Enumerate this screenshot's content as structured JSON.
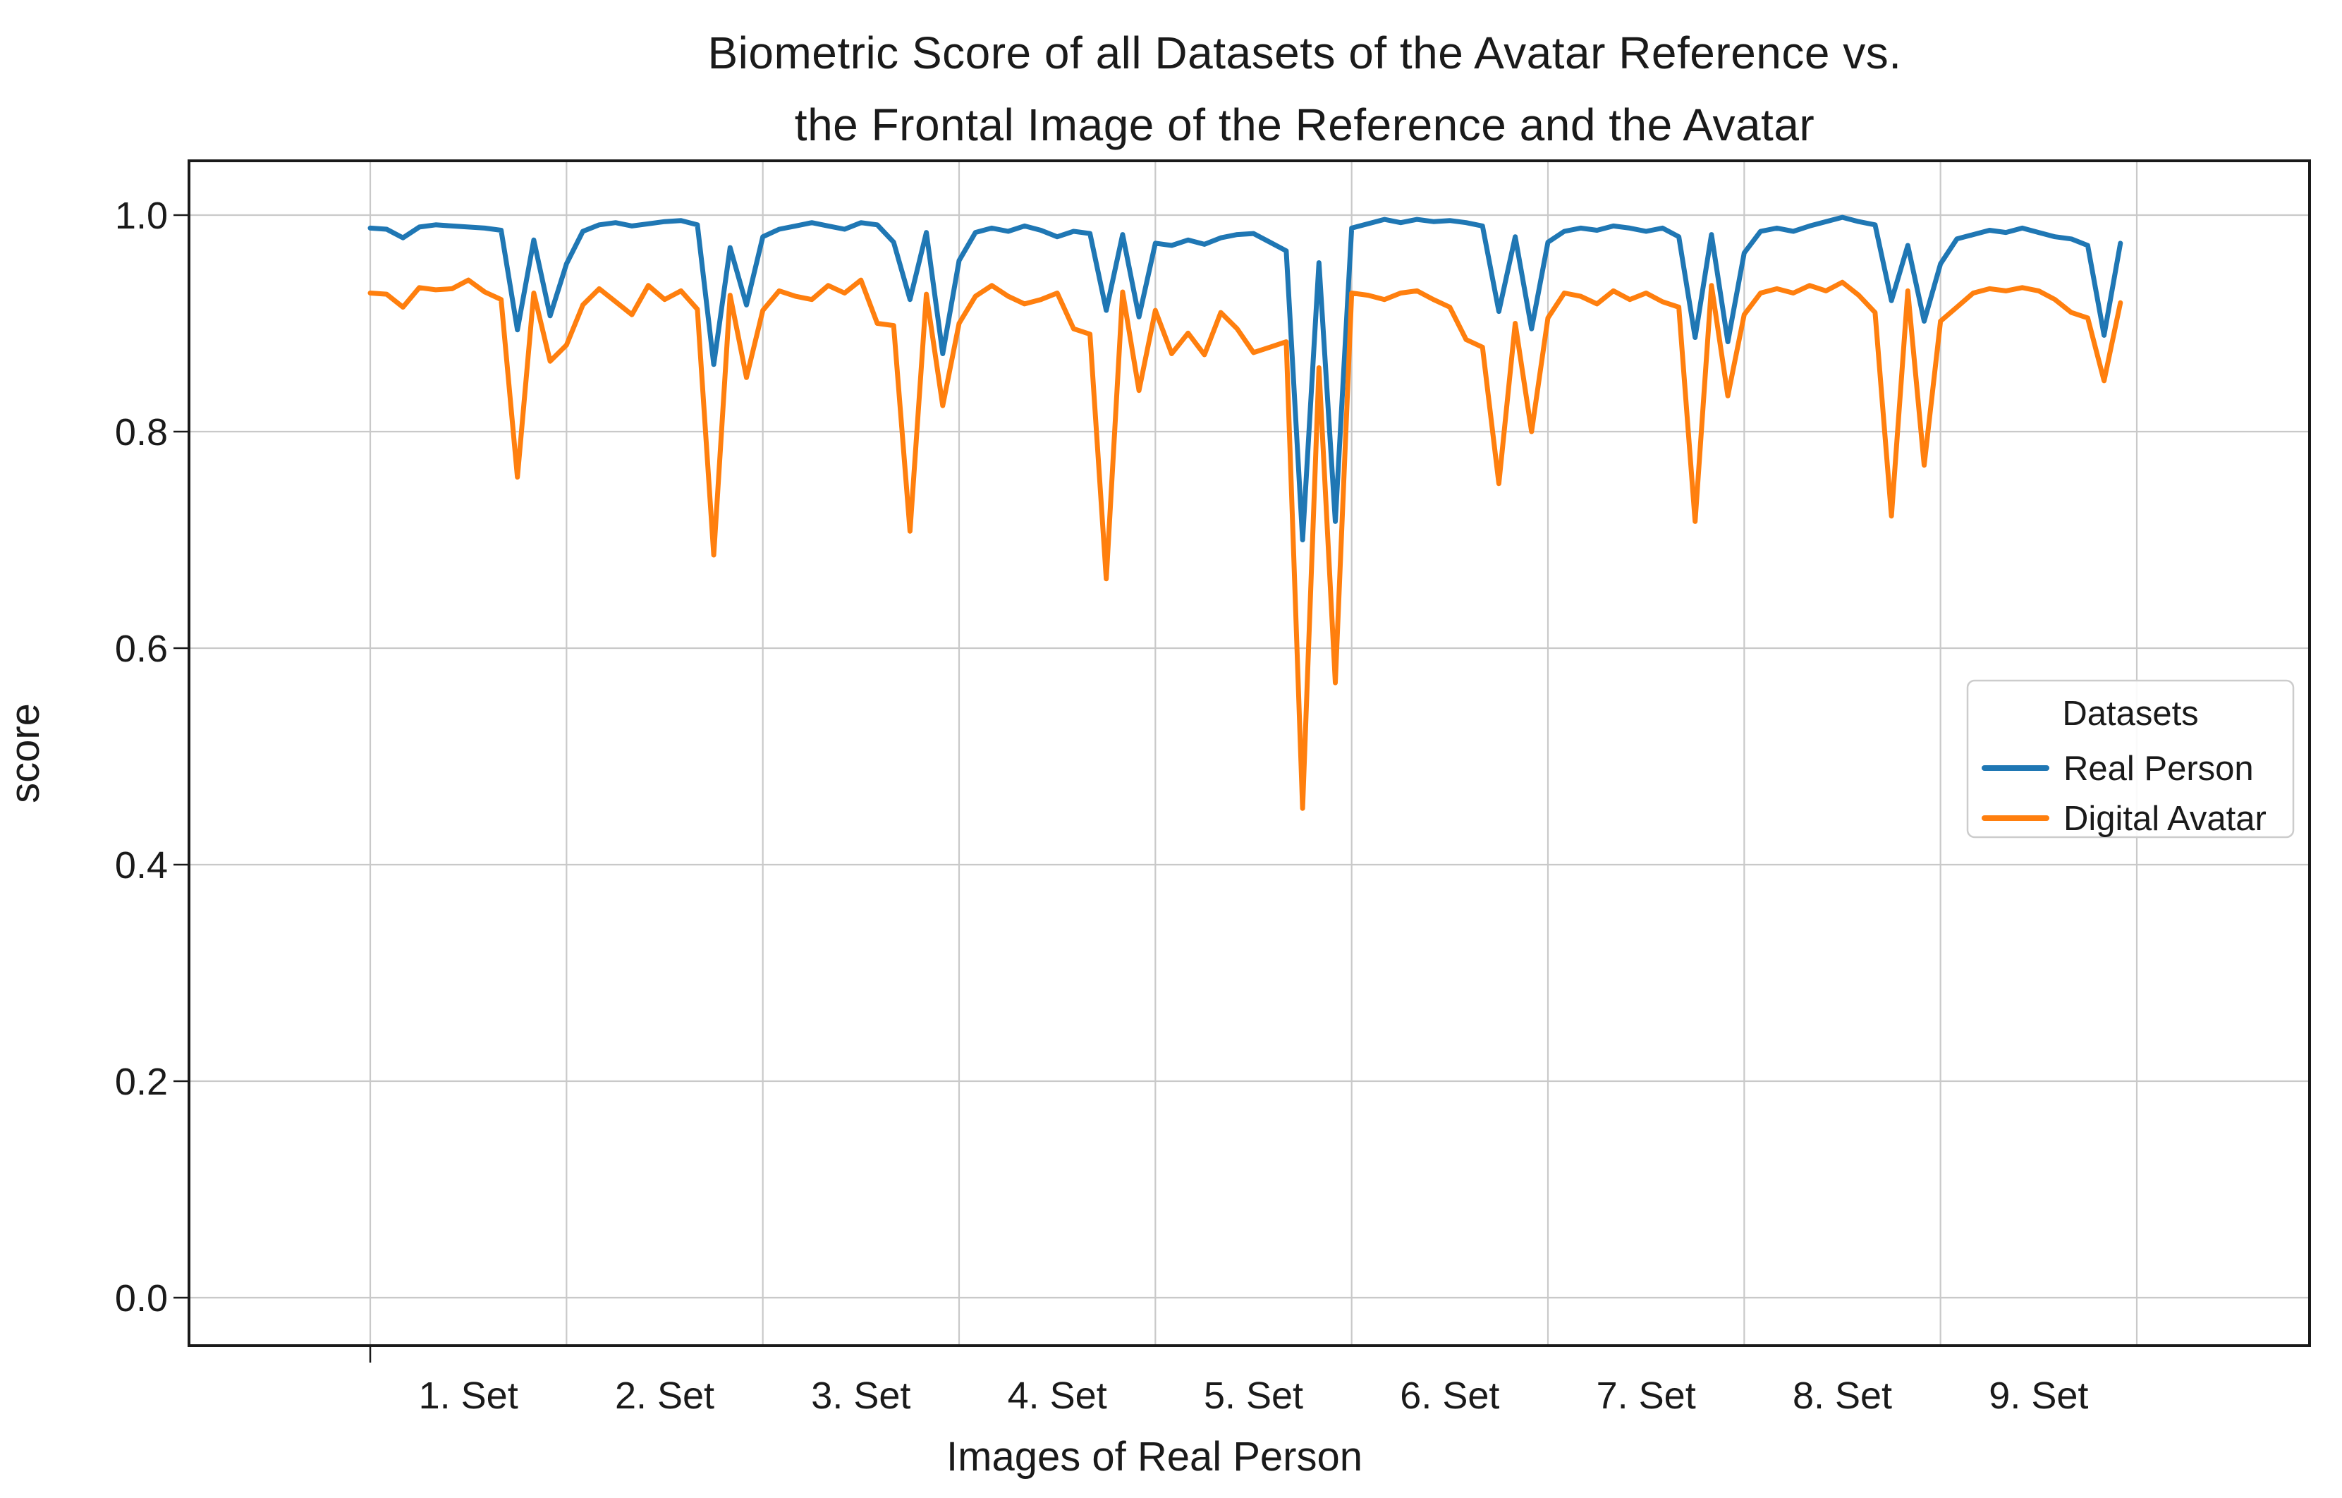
{
  "title": {
    "line1": "Biometric Score of all Datasets of the Avatar Reference vs.",
    "line2": "the Frontal Image of the Reference and the Avatar"
  },
  "colors": {
    "real_person": "#1f77b4",
    "digital_avatar": "#ff7f0e",
    "grid": "#c9c9c9",
    "spine": "#1a1a1a",
    "text": "#1a1a1a",
    "legend_border": "#cccccc",
    "background": "#ffffff"
  },
  "chart_data": {
    "type": "line",
    "title": "Biometric Score of all Datasets of the Avatar Reference vs. the Frontal Image of the Reference and the Avatar",
    "xlabel": "Images of Real Person",
    "ylabel": "score",
    "x_tick_labels": [
      "1. Set",
      "2. Set",
      "3. Set",
      "4. Set",
      "5. Set",
      "6. Set",
      "7. Set",
      "8. Set",
      "9. Set"
    ],
    "points_per_set": 12,
    "y_ticks": [
      0.0,
      0.2,
      0.4,
      0.6,
      0.8,
      1.0
    ],
    "ylim": [
      -0.044,
      1.05
    ],
    "grid": true,
    "legend": {
      "title": "Datasets",
      "position": "center right"
    },
    "series": [
      {
        "name": "Real Person",
        "color": "#1f77b4",
        "values": [
          0.988,
          0.987,
          0.979,
          0.989,
          0.991,
          0.99,
          0.989,
          0.988,
          0.986,
          0.894,
          0.977,
          0.907,
          0.955,
          0.985,
          0.991,
          0.993,
          0.99,
          0.992,
          0.994,
          0.995,
          0.991,
          0.862,
          0.97,
          0.917,
          0.98,
          0.987,
          0.99,
          0.993,
          0.99,
          0.987,
          0.993,
          0.991,
          0.975,
          0.922,
          0.984,
          0.872,
          0.958,
          0.984,
          0.988,
          0.985,
          0.99,
          0.986,
          0.98,
          0.985,
          0.983,
          0.912,
          0.982,
          0.906,
          0.974,
          0.972,
          0.977,
          0.973,
          0.979,
          0.982,
          0.983,
          0.975,
          0.967,
          0.7,
          0.956,
          0.717,
          0.988,
          0.992,
          0.996,
          0.993,
          0.996,
          0.994,
          0.995,
          0.993,
          0.99,
          0.911,
          0.98,
          0.895,
          0.975,
          0.985,
          0.988,
          0.986,
          0.99,
          0.988,
          0.985,
          0.988,
          0.98,
          0.887,
          0.982,
          0.883,
          0.965,
          0.985,
          0.988,
          0.985,
          0.99,
          0.994,
          0.998,
          0.994,
          0.991,
          0.921,
          0.972,
          0.902,
          0.955,
          0.978,
          0.982,
          0.986,
          0.984,
          0.988,
          0.984,
          0.98,
          0.978,
          0.972,
          0.889,
          0.974
        ]
      },
      {
        "name": "Digital Avatar",
        "color": "#ff7f0e",
        "values": [
          0.928,
          0.927,
          0.915,
          0.933,
          0.931,
          0.932,
          0.94,
          0.929,
          0.922,
          0.758,
          0.928,
          0.865,
          0.88,
          0.917,
          0.932,
          0.92,
          0.908,
          0.935,
          0.922,
          0.93,
          0.913,
          0.686,
          0.926,
          0.85,
          0.912,
          0.93,
          0.925,
          0.922,
          0.935,
          0.928,
          0.94,
          0.9,
          0.898,
          0.708,
          0.927,
          0.824,
          0.9,
          0.925,
          0.935,
          0.925,
          0.918,
          0.922,
          0.928,
          0.895,
          0.89,
          0.664,
          0.929,
          0.838,
          0.912,
          0.872,
          0.891,
          0.871,
          0.91,
          0.895,
          0.873,
          0.878,
          0.883,
          0.452,
          0.859,
          0.568,
          0.928,
          0.926,
          0.922,
          0.928,
          0.93,
          0.922,
          0.915,
          0.885,
          0.878,
          0.752,
          0.9,
          0.8,
          0.905,
          0.928,
          0.925,
          0.918,
          0.93,
          0.922,
          0.928,
          0.92,
          0.915,
          0.717,
          0.935,
          0.833,
          0.908,
          0.928,
          0.932,
          0.928,
          0.935,
          0.93,
          0.938,
          0.926,
          0.91,
          0.722,
          0.93,
          0.769,
          0.902,
          0.915,
          0.928,
          0.932,
          0.93,
          0.933,
          0.93,
          0.922,
          0.91,
          0.905,
          0.847,
          0.919
        ]
      }
    ]
  }
}
